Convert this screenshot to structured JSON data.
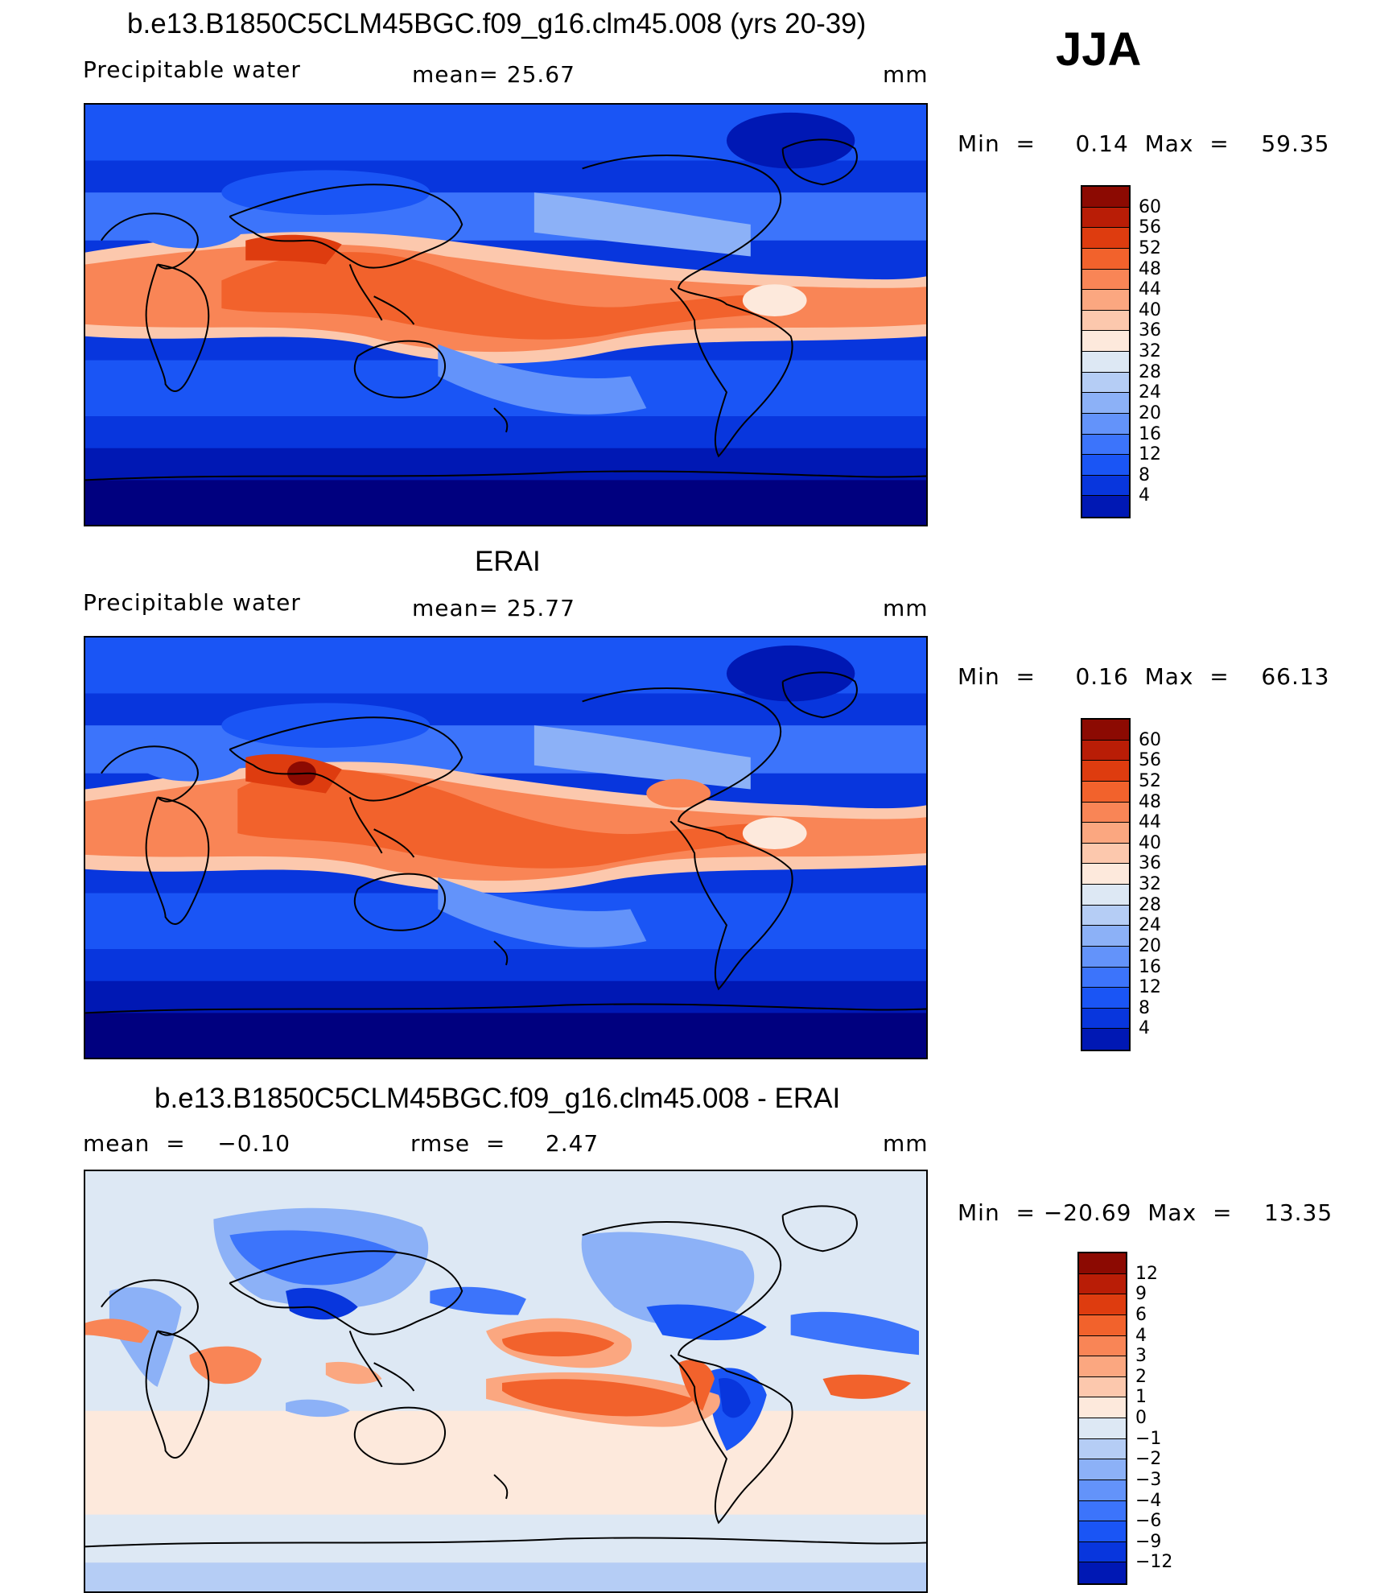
{
  "season": "JJA",
  "colors": {
    "levels_abs": [
      "#00007f",
      "#0018b4",
      "#0836dd",
      "#1a55f5",
      "#3c74fb",
      "#6393fa",
      "#8cb1f7",
      "#b5cdf5",
      "#dde8f4",
      "#fde9dc",
      "#fcc8ad",
      "#fba780",
      "#f98556",
      "#f2622c",
      "#de3c0f",
      "#b91d06",
      "#8c0a02"
    ],
    "levels_diff": [
      "#00007f",
      "#0018b4",
      "#0836dd",
      "#1a55f5",
      "#3c74fb",
      "#6393fa",
      "#8cb1f7",
      "#b5cdf5",
      "#dde8f4",
      "#fde9dc",
      "#fcc8ad",
      "#fba780",
      "#f98556",
      "#f2622c",
      "#de3c0f",
      "#b91d06",
      "#8c0a02"
    ]
  },
  "panels": [
    {
      "title": "b.e13.B1850C5CLM45BGC.f09_g16.clm45.008 (yrs 20-39)",
      "variable": "Precipitable water",
      "stat": "mean=   25.67",
      "units": "mm",
      "minmax": "Min  =     0.14  Max  =    59.35",
      "colorbar_ticks": [
        "60",
        "56",
        "52",
        "48",
        "44",
        "40",
        "36",
        "32",
        "28",
        "24",
        "20",
        "16",
        "12",
        "8",
        "4"
      ]
    },
    {
      "title": "ERAI",
      "variable": "Precipitable water",
      "stat": "mean=   25.77",
      "units": "mm",
      "minmax": "Min  =     0.16  Max  =    66.13",
      "colorbar_ticks": [
        "60",
        "56",
        "52",
        "48",
        "44",
        "40",
        "36",
        "32",
        "28",
        "24",
        "20",
        "16",
        "12",
        "8",
        "4"
      ]
    },
    {
      "title": "b.e13.B1850C5CLM45BGC.f09_g16.clm45.008 - ERAI",
      "variable": "mean  =    −0.10",
      "stat": "rmse  =     2.47",
      "units": "mm",
      "minmax": "Min  = −20.69  Max  =    13.35",
      "colorbar_ticks": [
        "12",
        "9",
        "6",
        "4",
        "3",
        "2",
        "1",
        "0",
        "−1",
        "−2",
        "−3",
        "−4",
        "−6",
        "−9",
        "−12"
      ]
    }
  ]
}
